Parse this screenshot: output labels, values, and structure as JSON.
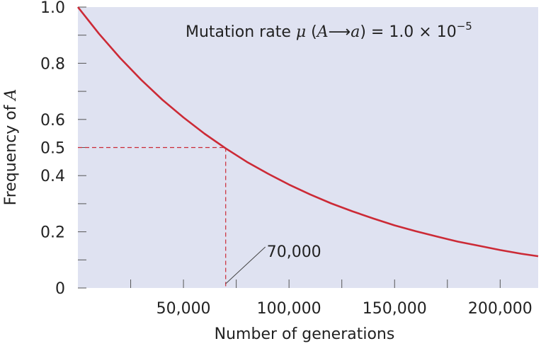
{
  "chart_data": {
    "type": "line",
    "xlabel": "Number of generations",
    "ylabel_main": "Frequency of ",
    "ylabel_italic": "A",
    "xlim": [
      0,
      218000
    ],
    "ylim": [
      0,
      1.0
    ],
    "x_ticks": [
      25000,
      50000,
      75000,
      100000,
      125000,
      150000,
      175000,
      200000
    ],
    "x_tick_labels": [
      {
        "value": 50000,
        "label": "50,000"
      },
      {
        "value": 100000,
        "label": "100,000"
      },
      {
        "value": 150000,
        "label": "150,000"
      },
      {
        "value": 200000,
        "label": "200,000"
      }
    ],
    "y_ticks": [
      0,
      0.1,
      0.2,
      0.3,
      0.4,
      0.5,
      0.6,
      0.7,
      0.8,
      0.9,
      1.0
    ],
    "y_tick_labels": [
      {
        "value": 0,
        "label": "0"
      },
      {
        "value": 0.2,
        "label": "0.2"
      },
      {
        "value": 0.4,
        "label": "0.4"
      },
      {
        "value": 0.5,
        "label": "0.5"
      },
      {
        "value": 0.6,
        "label": "0.6"
      },
      {
        "value": 0.8,
        "label": "0.8"
      },
      {
        "value": 1.0,
        "label": "1.0"
      }
    ],
    "series": [
      {
        "color": "#cc2a36",
        "x": [
          0,
          10000,
          20000,
          30000,
          40000,
          50000,
          60000,
          70000,
          80000,
          90000,
          100000,
          110000,
          120000,
          130000,
          140000,
          150000,
          160000,
          170000,
          180000,
          190000,
          200000,
          210000,
          218000
        ],
        "y": [
          1.0,
          0.905,
          0.819,
          0.741,
          0.67,
          0.607,
          0.549,
          0.497,
          0.449,
          0.407,
          0.368,
          0.333,
          0.301,
          0.273,
          0.247,
          0.223,
          0.202,
          0.183,
          0.165,
          0.15,
          0.135,
          0.122,
          0.113
        ]
      }
    ],
    "reference": {
      "x": 70000,
      "y": 0.5,
      "color": "#cc2a36"
    },
    "annotation": {
      "label": "70,000",
      "x": 70000
    },
    "formula": {
      "prefix": "Mutation rate ",
      "mu": "μ",
      "open": " (",
      "from": "A",
      "arrow": "⟶",
      "to": "a",
      "close": ") = 1.0 × 10",
      "exponent": "−5"
    },
    "plot_background": "#dfe2f1",
    "grid": false
  }
}
